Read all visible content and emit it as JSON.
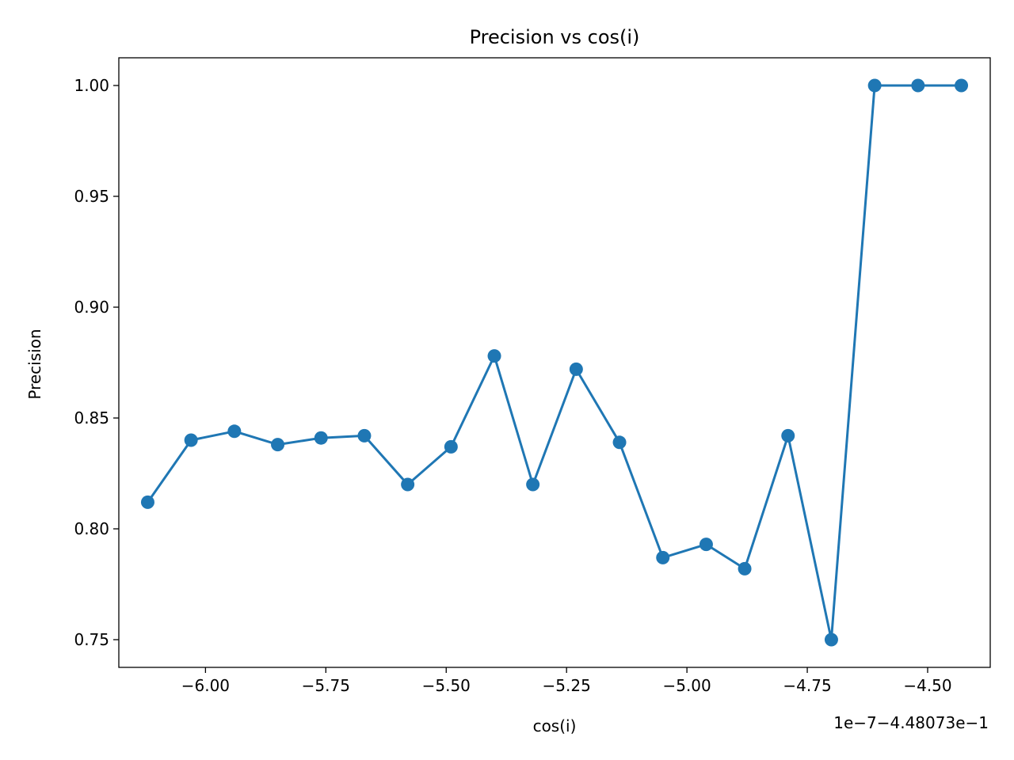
{
  "chart_data": {
    "type": "line",
    "title": "Precision vs cos(i)",
    "xlabel": "cos(i)",
    "ylabel": "Precision",
    "offset_label": "1e−7−4.48073e−1",
    "xlim": [
      -6.18,
      -4.37
    ],
    "ylim": [
      0.7375,
      1.0125
    ],
    "xticks": [
      -6.0,
      -5.75,
      -5.5,
      -5.25,
      -5.0,
      -4.75,
      -4.5
    ],
    "xtick_labels": [
      "−6.00",
      "−5.75",
      "−5.50",
      "−5.25",
      "−5.00",
      "−4.75",
      "−4.50"
    ],
    "yticks": [
      0.75,
      0.8,
      0.85,
      0.9,
      0.95,
      1.0
    ],
    "ytick_labels": [
      "0.75",
      "0.80",
      "0.85",
      "0.90",
      "0.95",
      "1.00"
    ],
    "grid": false,
    "series": [
      {
        "color": "#1f77b4",
        "marker": "circle",
        "x": [
          -6.12,
          -6.03,
          -5.94,
          -5.85,
          -5.76,
          -5.67,
          -5.58,
          -5.49,
          -5.4,
          -5.32,
          -5.23,
          -5.14,
          -5.05,
          -4.96,
          -4.88,
          -4.79,
          -4.7,
          -4.61,
          -4.52,
          -4.43
        ],
        "y": [
          0.812,
          0.84,
          0.844,
          0.838,
          0.841,
          0.842,
          0.82,
          0.837,
          0.878,
          0.82,
          0.872,
          0.839,
          0.787,
          0.793,
          0.782,
          0.842,
          0.75,
          1.0,
          1.0,
          1.0
        ]
      }
    ]
  }
}
